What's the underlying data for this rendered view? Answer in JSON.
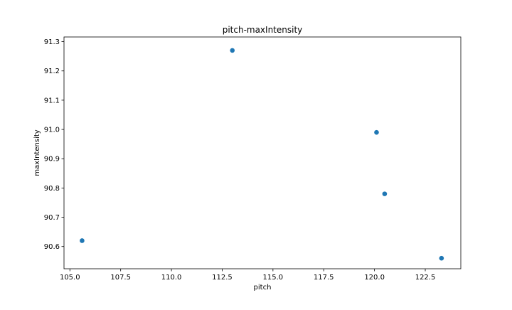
{
  "chart_data": {
    "type": "scatter",
    "title": "pitch-maxIntensity",
    "xlabel": "pitch",
    "ylabel": "maxIntensity",
    "xlim": [
      104.71,
      124.25
    ],
    "ylim": [
      90.524,
      91.316
    ],
    "xticks": [
      "105.0",
      "107.5",
      "110.0",
      "112.5",
      "115.0",
      "117.5",
      "120.0",
      "122.5"
    ],
    "yticks": [
      "90.6",
      "90.7",
      "90.8",
      "90.9",
      "91.0",
      "91.1",
      "91.2",
      "91.3"
    ],
    "grid": false,
    "marker_color": "#1f77b4",
    "points": [
      {
        "x": 105.6,
        "y": 90.62
      },
      {
        "x": 113.0,
        "y": 91.27
      },
      {
        "x": 120.1,
        "y": 90.99
      },
      {
        "x": 120.5,
        "y": 90.78
      },
      {
        "x": 123.3,
        "y": 90.56
      }
    ]
  }
}
